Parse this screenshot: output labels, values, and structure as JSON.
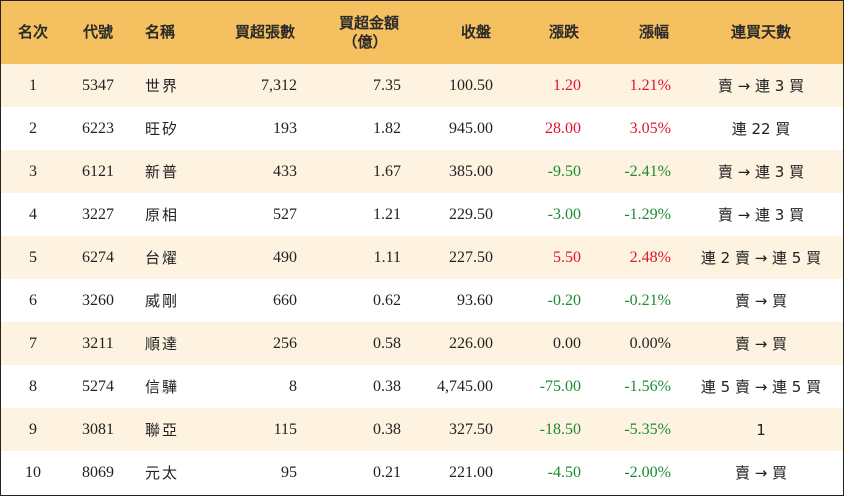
{
  "colors": {
    "header_bg": "#f5c060",
    "row_alt_bg": "#fdf3e0",
    "up": "#e0142c",
    "down": "#1d8a32"
  },
  "table": {
    "headers": {
      "rank": "名次",
      "code": "代號",
      "name": "名稱",
      "net_buy_lots": "買超張數",
      "net_buy_amount_line1": "買超金額",
      "net_buy_amount_line2": "（億）",
      "close": "收盤",
      "change": "漲跌",
      "change_pct": "漲幅",
      "consecutive_days": "連買天數"
    },
    "rows": [
      {
        "rank": "1",
        "code": "5347",
        "name": "世界",
        "lots": "7,312",
        "amount": "7.35",
        "close": "100.50",
        "change": "1.20",
        "pct": "1.21%",
        "dir": "up",
        "streak": "賣 → 連 3 買"
      },
      {
        "rank": "2",
        "code": "6223",
        "name": "旺矽",
        "lots": "193",
        "amount": "1.82",
        "close": "945.00",
        "change": "28.00",
        "pct": "3.05%",
        "dir": "up",
        "streak": "連 22 買"
      },
      {
        "rank": "3",
        "code": "6121",
        "name": "新普",
        "lots": "433",
        "amount": "1.67",
        "close": "385.00",
        "change": "-9.50",
        "pct": "-2.41%",
        "dir": "down",
        "streak": "賣 → 連 3 買"
      },
      {
        "rank": "4",
        "code": "3227",
        "name": "原相",
        "lots": "527",
        "amount": "1.21",
        "close": "229.50",
        "change": "-3.00",
        "pct": "-1.29%",
        "dir": "down",
        "streak": "賣 → 連 3 買"
      },
      {
        "rank": "5",
        "code": "6274",
        "name": "台燿",
        "lots": "490",
        "amount": "1.11",
        "close": "227.50",
        "change": "5.50",
        "pct": "2.48%",
        "dir": "up",
        "streak": "連 2 賣 → 連 5 買"
      },
      {
        "rank": "6",
        "code": "3260",
        "name": "威剛",
        "lots": "660",
        "amount": "0.62",
        "close": "93.60",
        "change": "-0.20",
        "pct": "-0.21%",
        "dir": "down",
        "streak": "賣 → 買"
      },
      {
        "rank": "7",
        "code": "3211",
        "name": "順達",
        "lots": "256",
        "amount": "0.58",
        "close": "226.00",
        "change": "0.00",
        "pct": "0.00%",
        "dir": "flat",
        "streak": "賣 → 買"
      },
      {
        "rank": "8",
        "code": "5274",
        "name": "信驊",
        "lots": "8",
        "amount": "0.38",
        "close": "4,745.00",
        "change": "-75.00",
        "pct": "-1.56%",
        "dir": "down",
        "streak": "連 5 賣 → 連 5 買"
      },
      {
        "rank": "9",
        "code": "3081",
        "name": "聯亞",
        "lots": "115",
        "amount": "0.38",
        "close": "327.50",
        "change": "-18.50",
        "pct": "-5.35%",
        "dir": "down",
        "streak": "1"
      },
      {
        "rank": "10",
        "code": "8069",
        "name": "元太",
        "lots": "95",
        "amount": "0.21",
        "close": "221.00",
        "change": "-4.50",
        "pct": "-2.00%",
        "dir": "down",
        "streak": "賣 → 買"
      }
    ]
  }
}
